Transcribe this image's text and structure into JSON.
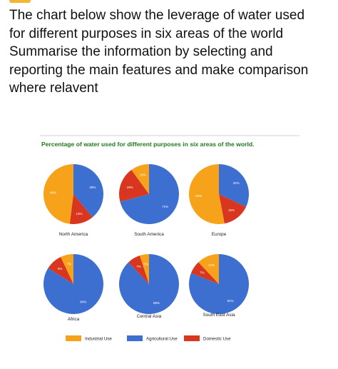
{
  "prompt": {
    "lines": [
      "The chart below show the leverage of water used",
      "for different purposes in six areas of the world",
      "Summarise the information by selecting and",
      "reporting the main features and make comparison",
      "where relavent"
    ]
  },
  "colors": {
    "industrial": "#f6a31b",
    "agricultural": "#3d6fd1",
    "domestic": "#d8361f",
    "title": "#1e7a1e",
    "accent": "#f2b632"
  },
  "chart_data": {
    "type": "pie",
    "title": "Percentage of water used for different purposes in six areas of the world.",
    "legend": {
      "placement": "bottom",
      "entries": [
        "Industrial Use",
        "Agricultural Use",
        "Domestic Use"
      ]
    },
    "categories": [
      "Industrial Use",
      "Agricultural Use",
      "Domestic Use"
    ],
    "pies": [
      {
        "name": "North America",
        "values": [
          48,
          39,
          13
        ],
        "labels": [
          "48%",
          "39%",
          "13%"
        ]
      },
      {
        "name": "South America",
        "values": [
          10,
          71,
          19
        ],
        "labels": [
          "10%",
          "71%",
          "19%"
        ]
      },
      {
        "name": "Europe",
        "values": [
          53,
          32,
          15
        ],
        "labels": [
          "53%",
          "32%",
          "15%"
        ]
      },
      {
        "name": "Africa",
        "values": [
          7,
          84,
          9
        ],
        "labels": [
          "7%",
          "84%",
          "9%"
        ]
      },
      {
        "name": "Central Asia",
        "values": [
          5,
          88,
          7
        ],
        "labels": [
          "5%",
          "88%",
          "7%"
        ]
      },
      {
        "name": "South East Asia",
        "values": [
          12,
          81,
          7
        ],
        "labels": [
          "12%",
          "81%",
          "7%"
        ]
      }
    ]
  }
}
